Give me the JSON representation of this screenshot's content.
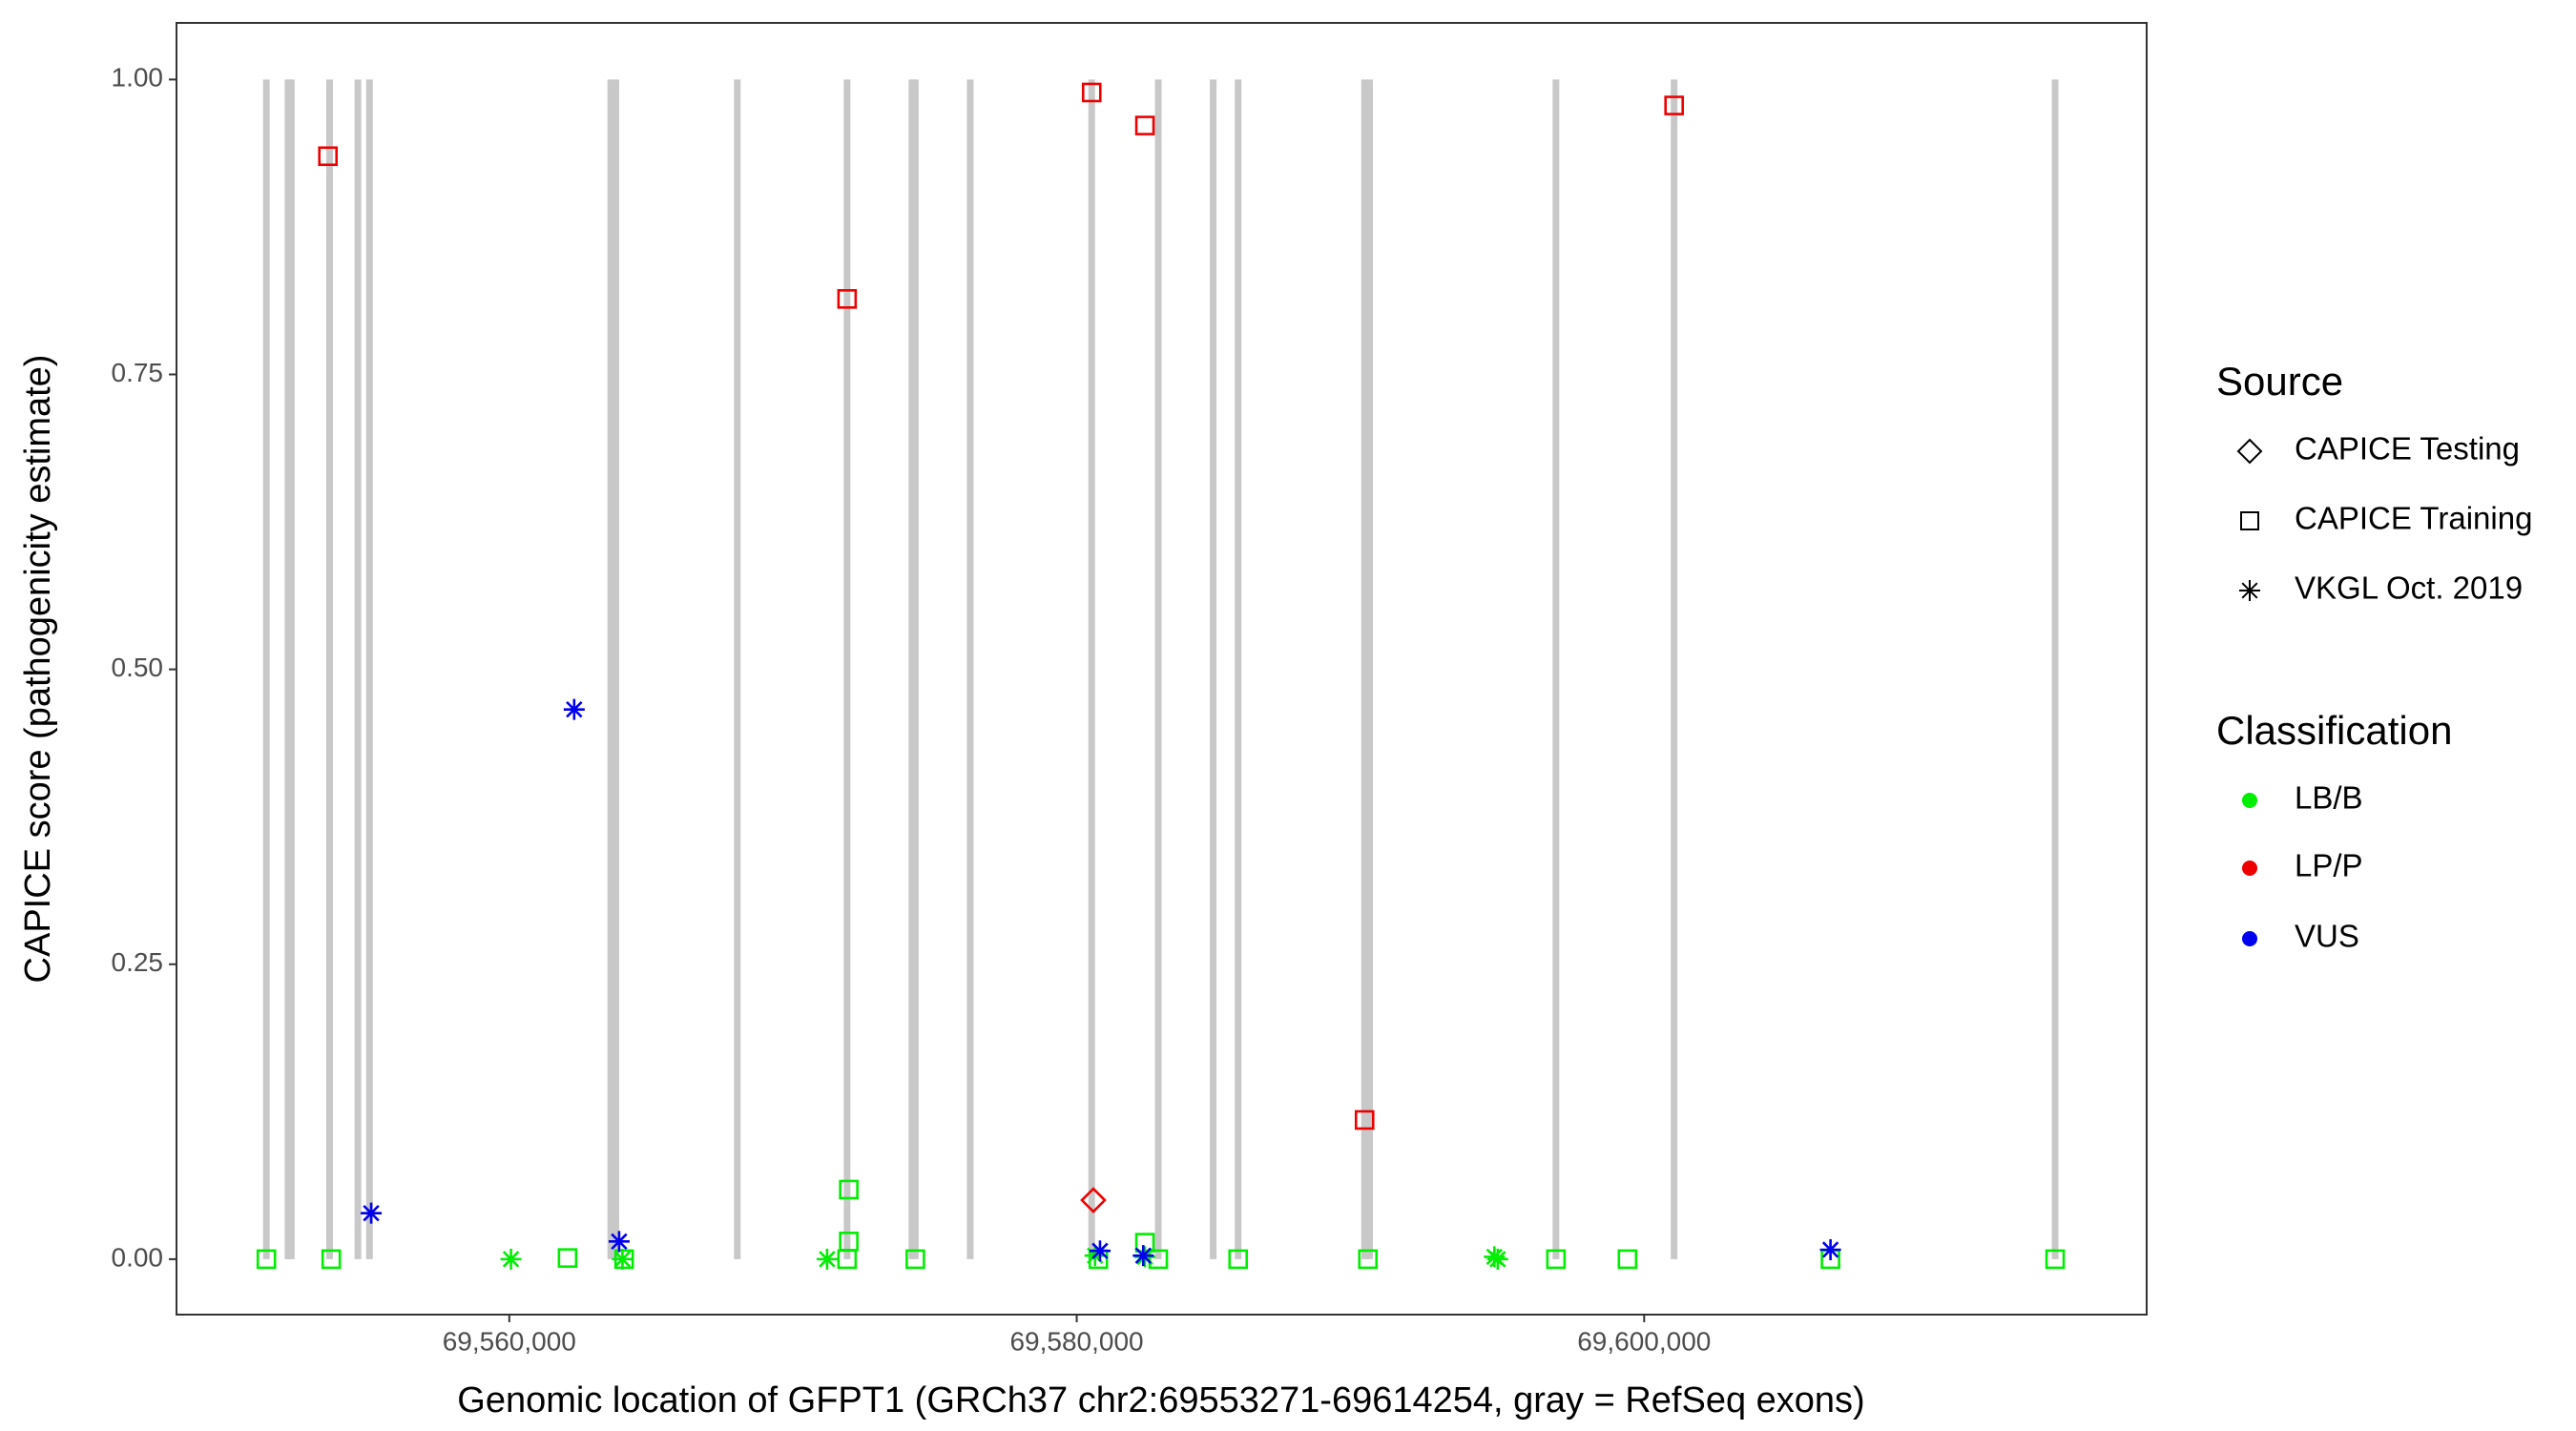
{
  "chart_data": {
    "type": "scatter",
    "xlabel": "Genomic location of GFPT1 (GRCh37 chr2:69553271-69614254, gray = RefSeq exons)",
    "ylabel": "CAPICE score (pathogenicity estimate)",
    "xlim": [
      69548270,
      69617712
    ],
    "ylim": [
      -0.047,
      1.048
    ],
    "xticks": [
      {
        "value": 69560000,
        "label": "69,560,000"
      },
      {
        "value": 69580000,
        "label": "69,580,000"
      },
      {
        "value": 69600000,
        "label": "69,600,000"
      }
    ],
    "yticks": [
      {
        "value": 0,
        "label": "0.00"
      },
      {
        "value": 0.25,
        "label": "0.25"
      },
      {
        "value": 0.5,
        "label": "0.50"
      },
      {
        "value": 0.75,
        "label": "0.75"
      },
      {
        "value": 1,
        "label": "1.00"
      }
    ],
    "grid": false,
    "exons": {
      "color": "#c8c8c8",
      "x": [
        69551437,
        69552200,
        69552317,
        69553666,
        69554663,
        69555073,
        69563578,
        69563754,
        69568035,
        69571906,
        69574193,
        69574311,
        69576246,
        69580528,
        69582874,
        69584810,
        69585689,
        69590146,
        69590322,
        69596891,
        69601056,
        69614485
      ]
    },
    "legends": [
      {
        "title": "Source",
        "items": [
          {
            "name": "CAPICE Testing",
            "shape": "diamond"
          },
          {
            "name": "CAPICE Training",
            "shape": "square"
          },
          {
            "name": "VKGL Oct. 2019",
            "shape": "asterisk"
          }
        ]
      },
      {
        "title": "Classification",
        "items": [
          {
            "name": "LB/B",
            "color": "#00ee00"
          },
          {
            "name": "LP/P",
            "color": "#ee0000"
          },
          {
            "name": "VUS",
            "color": "#0000ee"
          }
        ]
      }
    ],
    "series": [
      {
        "source": "CAPICE Training",
        "classification": "LB/B",
        "x": [
          69551437,
          69553724,
          69562053,
          69564047,
          69571906,
          69571965,
          69571965,
          69574311,
          69580762,
          69582404,
          69582874,
          69585689,
          69590263,
          69596891,
          69599413,
          69606568,
          69614485
        ],
        "values": [
          0,
          0,
          0.001,
          0,
          0,
          0.059,
          0.015,
          0,
          0,
          0.014,
          0,
          0,
          0,
          0,
          0,
          0,
          0
        ]
      },
      {
        "source": "VKGL Oct. 2019",
        "classification": "LB/B",
        "x": [
          69560059,
          69563988,
          69571202,
          69580645,
          69582404,
          69594721,
          69594838
        ],
        "values": [
          0,
          0,
          0,
          0.003,
          0.002,
          0.002,
          0
        ]
      },
      {
        "source": "CAPICE Training",
        "classification": "LP/P",
        "x": [
          69553607,
          69571906,
          69580528,
          69582404,
          69601056,
          69590146
        ],
        "values": [
          0.935,
          0.814,
          0.989,
          0.961,
          0.978,
          0.118
        ]
      },
      {
        "source": "CAPICE Testing",
        "classification": "LP/P",
        "x": [
          69580586
        ],
        "values": [
          0.05
        ]
      },
      {
        "source": "VKGL Oct. 2019",
        "classification": "VUS",
        "x": [
          69555132,
          69562287,
          69563871,
          69580821,
          69582346,
          69606568
        ],
        "values": [
          0.039,
          0.466,
          0.015,
          0.007,
          0.003,
          0.008
        ]
      }
    ]
  }
}
